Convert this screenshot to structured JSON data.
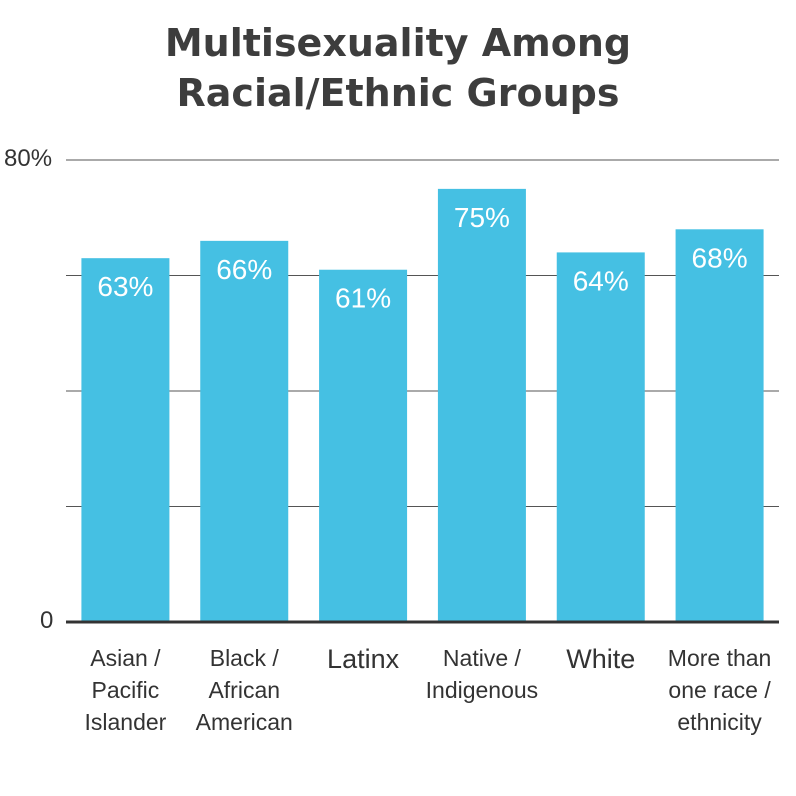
{
  "chart_data": {
    "type": "bar",
    "title_lines": [
      "Multisexuality Among",
      "Racial/Ethnic Groups"
    ],
    "categories": [
      [
        "Asian /",
        "Pacific",
        "Islander"
      ],
      [
        "Black /",
        "African",
        "American"
      ],
      [
        "Latinx"
      ],
      [
        "Native /",
        "Indigenous"
      ],
      [
        "White"
      ],
      [
        "More than",
        "one race /",
        "ethnicity"
      ]
    ],
    "values": [
      63,
      66,
      61,
      75,
      64,
      68
    ],
    "data_labels": [
      "63%",
      "66%",
      "61%",
      "75%",
      "64%",
      "68%"
    ],
    "y_tick_labels": {
      "bottom": "0",
      "top": "80%"
    },
    "ylim": [
      0,
      80
    ],
    "grid": true,
    "bar_color": "#45c0e3",
    "grid_color": "#555555"
  }
}
